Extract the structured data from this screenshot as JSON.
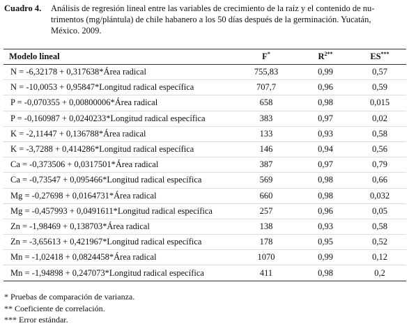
{
  "caption": {
    "label": "Cuadro 4.",
    "lines": [
      "Análisis de regresión lineal entre las variables de crecimiento de la raíz y el contenido de nu-",
      "trimentos (mg/plántula) de chile habanero a los 50 días después de la germinación. Yucatán,",
      "México. 2009."
    ]
  },
  "table": {
    "header": [
      {
        "text": "Modelo lineal"
      },
      {
        "text": "F",
        "sup": "*"
      },
      {
        "text": "R",
        "sup": "2**"
      },
      {
        "text": "ES",
        "sup": "***"
      }
    ],
    "rows": [
      [
        "N = -6,32178 + 0,317638*Área radical",
        "755,83",
        "0,99",
        "0,57"
      ],
      [
        "N = -10,0053 + 0,95847*Longitud radical específica",
        "707,7",
        "0,96",
        "0,59"
      ],
      [
        "P = -0,070355 + 0,00800006*Área radical",
        "658",
        "0,98",
        "0,015"
      ],
      [
        "P = -0,160987 + 0,0240233*Longitud radical específica",
        "383",
        "0,97",
        "0,02"
      ],
      [
        "K = -2,11447 + 0,136788*Área radical",
        "133",
        "0,93",
        "0,58"
      ],
      [
        "K = -3,7288 + 0,414286*Longitud radical específica",
        "146",
        "0,94",
        "0,56"
      ],
      [
        "Ca = -0,373506 + 0,0317501*Área radical",
        "387",
        "0,97",
        "0,79"
      ],
      [
        "Ca = -0,73547 + 0,095466*Longitud radical específica",
        "569",
        "0,98",
        "0,66"
      ],
      [
        "Mg = -0,27698 + 0,0164731*Área radical",
        "660",
        "0,98",
        "0,032"
      ],
      [
        "Mg = -0,457993 + 0,0491611*Longitud radical específica",
        "257",
        "0,96",
        "0,05"
      ],
      [
        "Zn = -1,98469 + 0,138703*Área radical",
        "138",
        "0,93",
        "0,58"
      ],
      [
        "Zn = -3,65613 + 0,421967*Longitud radical específica",
        "178",
        "0,95",
        "0,52"
      ],
      [
        "Mn = -1,02418 + 0,0824458*Área radical",
        "1070",
        "0,99",
        "0,12"
      ],
      [
        "Mn = -1,94898 + 0,247073*Longitud radical específica",
        "411",
        "0,98",
        "0,2"
      ]
    ]
  },
  "footnotes": [
    "* Pruebas de comparación de varianza.",
    "** Coeficiente de correlación.",
    "*** Error estándar."
  ]
}
